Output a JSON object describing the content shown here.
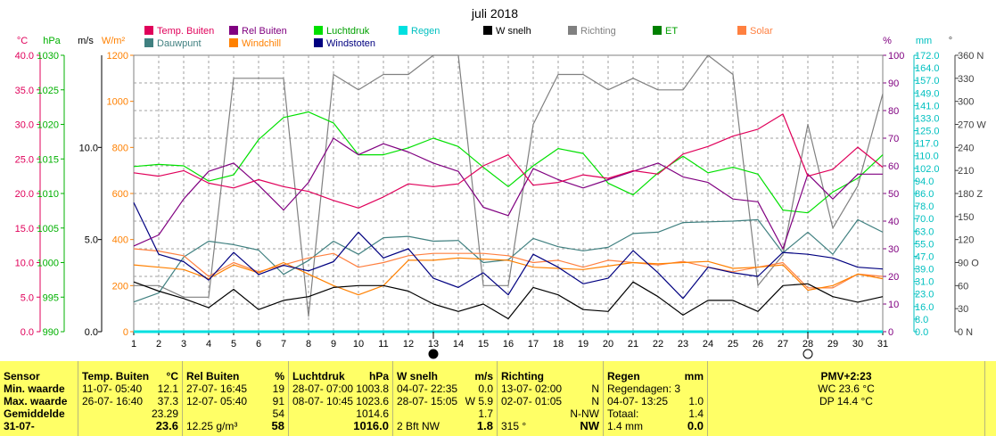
{
  "chart_data": {
    "type": "line",
    "title": "juli 2018",
    "x": [
      1,
      2,
      3,
      4,
      5,
      6,
      7,
      8,
      9,
      10,
      11,
      12,
      13,
      14,
      15,
      16,
      17,
      18,
      19,
      20,
      21,
      22,
      23,
      24,
      25,
      26,
      27,
      28,
      29,
      30,
      31
    ],
    "legend": [
      {
        "name": "Temp. Buiten",
        "color": "#e0005a"
      },
      {
        "name": "Rel Buiten",
        "color": "#800080"
      },
      {
        "name": "Luchtdruk",
        "color": "#00e000"
      },
      {
        "name": "Regen",
        "color": "#00e0e0"
      },
      {
        "name": "W snelh",
        "color": "#000000"
      },
      {
        "name": "Richting",
        "color": "#808080"
      },
      {
        "name": "ET",
        "color": "#008000"
      },
      {
        "name": "Solar",
        "color": "#ff8040"
      },
      {
        "name": "Dauwpunt",
        "color": "#408080"
      },
      {
        "name": "Windchill",
        "color": "#ff8000"
      },
      {
        "name": "Windstoten",
        "color": "#000080"
      }
    ],
    "axes": {
      "temp": {
        "unit": "°C",
        "min": 0,
        "max": 40,
        "ticks": [
          "0.0",
          "5.0",
          "10.0",
          "15.0",
          "20.0",
          "25.0",
          "30.0",
          "35.0",
          "40.0"
        ],
        "color": "#e0005a"
      },
      "pressure": {
        "unit": "hPa",
        "min": 990,
        "max": 1030,
        "ticks": [
          "990",
          "995",
          "1000",
          "1005",
          "1010",
          "1015",
          "1020",
          "1025",
          "1030"
        ],
        "color": "#00b000"
      },
      "wind": {
        "unit": "m/s",
        "min": 0,
        "max": 15,
        "ticks": [
          "0.0",
          "5.0",
          "10.0"
        ],
        "color": "#000000"
      },
      "solar": {
        "unit": "W/m²",
        "min": 0,
        "max": 1200,
        "ticks": [
          "0",
          "200",
          "400",
          "600",
          "800",
          "1000",
          "1200"
        ],
        "color": "#ff8000"
      },
      "humidity": {
        "unit": "%",
        "min": 0,
        "max": 100,
        "ticks": [
          "0",
          "10",
          "20",
          "30",
          "40",
          "50",
          "60",
          "70",
          "80",
          "90",
          "100"
        ],
        "color": "#800080"
      },
      "rain": {
        "unit": "mm",
        "ticks": [
          "0.0",
          "8.0",
          "16.0",
          "23.0",
          "31.0",
          "39.0",
          "47.0",
          "55.0",
          "63.0",
          "70.0",
          "78.0",
          "86.0",
          "94.0",
          "102.0",
          "110.0",
          "117.0",
          "125.0",
          "133.0",
          "141.0",
          "149.0",
          "157.0",
          "164.0",
          "172.0"
        ],
        "color": "#00c0c0"
      },
      "direction": {
        "unit": "°",
        "ticks": [
          "0 N",
          "30",
          "60",
          "90 O",
          "120",
          "150",
          "180 Z",
          "210",
          "240",
          "270 W",
          "300",
          "330",
          "360 N"
        ],
        "color": "#404040"
      }
    },
    "series": [
      {
        "name": "Temp. Buiten",
        "axis": "temp",
        "color": "#e0005a",
        "values": [
          23.0,
          22.5,
          23.3,
          21.5,
          20.8,
          22.0,
          21.0,
          20.3,
          19.0,
          17.9,
          19.5,
          21.4,
          21.0,
          21.4,
          24.0,
          25.6,
          21.2,
          21.6,
          22.7,
          22.2,
          23.3,
          22.8,
          25.7,
          26.8,
          28.3,
          29.3,
          31.5,
          22.5,
          23.5,
          26.7,
          23.8
        ]
      },
      {
        "name": "Rel Buiten",
        "axis": "humidity",
        "color": "#800080",
        "values": [
          31,
          35,
          48,
          58,
          61,
          53,
          44,
          54,
          70,
          64,
          68,
          65,
          61,
          58,
          45,
          42,
          59,
          55,
          52,
          55,
          58,
          61,
          56,
          54,
          48,
          47,
          30,
          57,
          48,
          57,
          57
        ]
      },
      {
        "name": "Luchtdruk",
        "axis": "pressure",
        "color": "#00e000",
        "values": [
          1013.9,
          1014.2,
          1014.0,
          1011.8,
          1012.7,
          1017.8,
          1021.0,
          1021.8,
          1020.2,
          1015.6,
          1015.6,
          1016.6,
          1018.0,
          1016.8,
          1013.8,
          1011.0,
          1014.0,
          1016.5,
          1015.8,
          1011.5,
          1009.8,
          1013.0,
          1015.4,
          1013.0,
          1013.8,
          1012.8,
          1007.6,
          1007.2,
          1010.2,
          1012.2,
          1015.6
        ]
      },
      {
        "name": "Regen",
        "axis": "rain",
        "color": "#00e0e0",
        "values": [
          0,
          0,
          0,
          0,
          0,
          0,
          0,
          0,
          0,
          0,
          0,
          0,
          0,
          0,
          0,
          0,
          0,
          0,
          0,
          0,
          0,
          0,
          0,
          0,
          0,
          0,
          0,
          0,
          0,
          0,
          0
        ]
      },
      {
        "name": "W snelh",
        "axis": "wind",
        "color": "#000000",
        "values": [
          2.7,
          2.2,
          1.8,
          1.3,
          2.3,
          1.2,
          1.7,
          1.9,
          2.4,
          2.5,
          2.5,
          2.2,
          1.5,
          1.1,
          1.5,
          0.7,
          2.4,
          2.0,
          1.2,
          1.1,
          2.7,
          1.9,
          0.9,
          1.7,
          1.7,
          1.1,
          2.5,
          2.6,
          1.9,
          1.6,
          1.9
        ]
      },
      {
        "name": "Richting",
        "axis": "direction",
        "color": "#808080",
        "values": [
          60,
          60,
          45,
          45,
          330,
          330,
          330,
          20,
          335,
          315,
          335,
          335,
          360,
          360,
          60,
          60,
          270,
          335,
          335,
          315,
          330,
          315,
          315,
          360,
          335,
          60,
          100,
          270,
          135,
          190,
          310
        ]
      },
      {
        "name": "Dauwpunt",
        "axis": "temp",
        "color": "#408080",
        "values": [
          4.3,
          5.6,
          10.8,
          13.1,
          12.6,
          11.8,
          8.3,
          10.3,
          13.1,
          11.2,
          13.6,
          13.8,
          13.1,
          13.2,
          10.0,
          10.4,
          13.5,
          12.3,
          11.7,
          12.2,
          14.2,
          14.4,
          15.8,
          15.9,
          16.0,
          16.2,
          11.4,
          14.4,
          11.2,
          16.2,
          14.4
        ]
      },
      {
        "name": "Windchill",
        "axis": "solar",
        "color": "#ff8000",
        "values": [
          290,
          280,
          270,
          230,
          290,
          255,
          300,
          250,
          200,
          160,
          200,
          310,
          310,
          320,
          315,
          310,
          280,
          275,
          270,
          285,
          300,
          295,
          300,
          305,
          275,
          280,
          290,
          180,
          200,
          250,
          230
        ]
      },
      {
        "name": "Solar",
        "axis": "solar",
        "color": "#ff8040",
        "values": [
          360,
          350,
          330,
          240,
          300,
          260,
          290,
          320,
          340,
          280,
          300,
          330,
          340,
          340,
          340,
          330,
          300,
          310,
          280,
          310,
          300,
          290,
          305,
          280,
          260,
          280,
          300,
          190,
          190,
          250,
          240
        ]
      },
      {
        "name": "Windstoten",
        "axis": "wind",
        "color": "#000080",
        "values": [
          7.0,
          4.2,
          3.8,
          2.8,
          4.3,
          3.1,
          3.6,
          3.3,
          3.8,
          5.4,
          4.0,
          4.5,
          2.9,
          2.4,
          3.2,
          2.0,
          4.2,
          3.5,
          2.6,
          2.9,
          4.4,
          3.2,
          1.8,
          3.5,
          3.2,
          3.0,
          4.3,
          4.2,
          4.0,
          3.5,
          3.4
        ]
      }
    ],
    "moon_markers": [
      {
        "x": 13,
        "phase": "new"
      },
      {
        "x": 28,
        "phase": "full"
      }
    ]
  },
  "table": {
    "sensor": {
      "header": "Sensor",
      "min": "Min. waarde",
      "max": "Max. waarde",
      "avg": "Gemiddelde",
      "cur": "31-07-"
    },
    "temp": {
      "header": "Temp. Buiten",
      "unit": "°C",
      "min_t": "11-07- 05:40",
      "min_v": "12.1",
      "max_t": "26-07- 16:40",
      "max_v": "37.3",
      "avg": "23.29",
      "cur": "23.6"
    },
    "rel": {
      "header": "Rel Buiten",
      "unit": "%",
      "min_t": "27-07- 16:45",
      "min_v": "19",
      "max_t": "12-07- 05:40",
      "max_v": "91",
      "avg": "54",
      "cur_extra": "12.25 g/m³",
      "cur": "58"
    },
    "press": {
      "header": "Luchtdruk",
      "unit": "hPa",
      "min_t": "28-07- 07:00",
      "min_v": "1003.8",
      "max_t": "08-07- 10:45",
      "max_v": "1023.6",
      "avg": "1014.6",
      "cur": "1016.0"
    },
    "wind": {
      "header": "W snelh",
      "unit": "m/s",
      "min_t": "04-07- 22:35",
      "min_v": "0.0",
      "max_t": "28-07- 15:05",
      "max_v": "W 5.9",
      "avg": "1.7",
      "cur_extra": "2 Bft NW",
      "cur": "1.8"
    },
    "dir": {
      "header": "Richting",
      "min_t": "13-07- 02:00",
      "min_v": "N",
      "max_t": "02-07- 01:05",
      "max_v": "N",
      "avg": "N-NW",
      "cur_extra": "315 °",
      "cur": "NW"
    },
    "rain": {
      "header": "Regen",
      "unit": "mm",
      "days": "Regendagen: 3",
      "max_t": "04-07- 13:25",
      "max_v": "1.0",
      "tot_label": "Totaal:",
      "tot_v": "1.4",
      "cur_extra": "1.4 mm",
      "cur": "0.0"
    },
    "pmv": {
      "header": "PMV+2:23",
      "wc": "WC 23.6 °C",
      "dp": "DP 14.4 °C"
    }
  }
}
